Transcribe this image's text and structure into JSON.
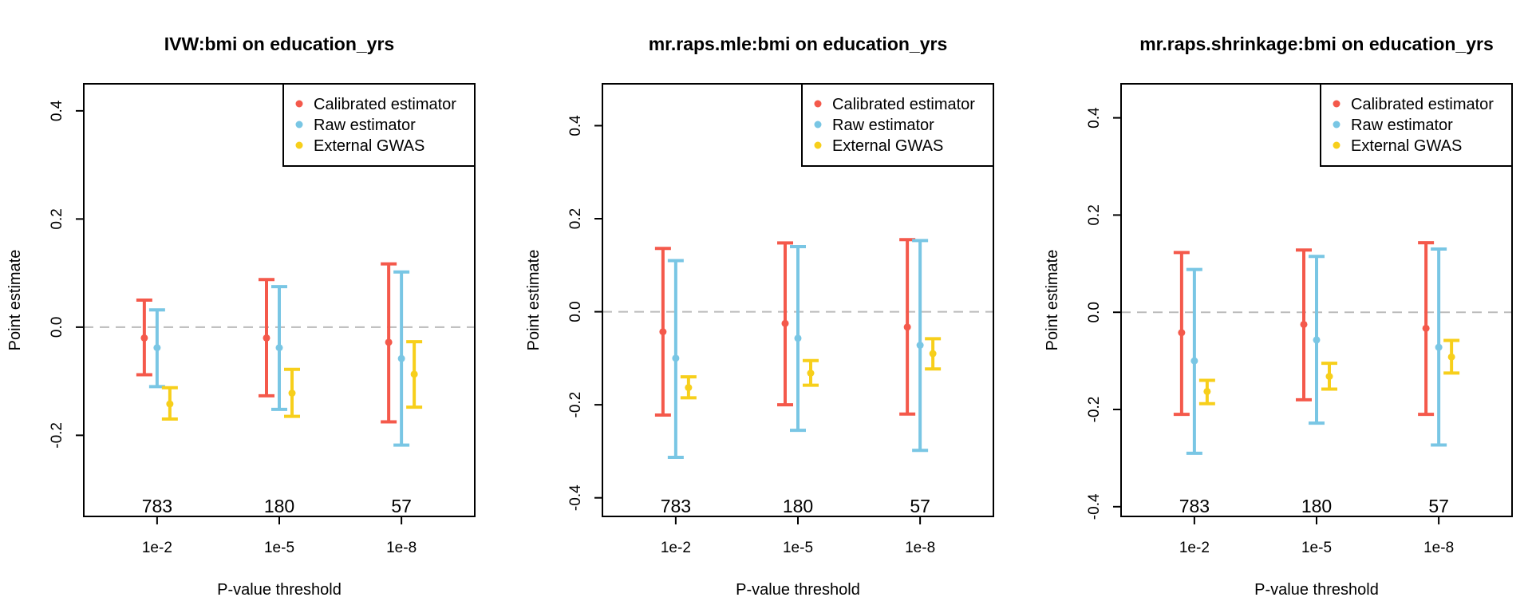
{
  "colors": {
    "calibrated": "#F4594B",
    "raw": "#79C6E4",
    "external": "#F7CF1B",
    "reference": "#BBBBBB"
  },
  "chart_data": [
    {
      "type": "errorbar",
      "title": "IVW:bmi on education_yrs",
      "xlabel": "P-value threshold",
      "ylabel": "Point estimate",
      "ylim": [
        -0.35,
        0.45
      ],
      "yticks": [
        -0.2,
        0.0,
        0.2,
        0.4
      ],
      "ytick_labels": [
        "-0.2",
        "0.0",
        "0.2",
        "0.4"
      ],
      "reference_line": 0.0,
      "legend": "top-right",
      "categories": [
        "1e-2",
        "1e-5",
        "1e-8"
      ],
      "counts": [
        "783",
        "180",
        "57"
      ],
      "series": [
        {
          "name": "Calibrated estimator",
          "color_key": "calibrated",
          "points": [
            {
              "est": -0.02,
              "lo": -0.088,
              "hi": 0.05
            },
            {
              "est": -0.02,
              "lo": -0.127,
              "hi": 0.088
            },
            {
              "est": -0.028,
              "lo": -0.175,
              "hi": 0.117
            }
          ]
        },
        {
          "name": "Raw estimator",
          "color_key": "raw",
          "points": [
            {
              "est": -0.038,
              "lo": -0.11,
              "hi": 0.032
            },
            {
              "est": -0.038,
              "lo": -0.152,
              "hi": 0.075
            },
            {
              "est": -0.058,
              "lo": -0.218,
              "hi": 0.102
            }
          ]
        },
        {
          "name": "External GWAS",
          "color_key": "external",
          "points": [
            {
              "est": -0.142,
              "lo": -0.17,
              "hi": -0.112
            },
            {
              "est": -0.122,
              "lo": -0.165,
              "hi": -0.078
            },
            {
              "est": -0.087,
              "lo": -0.148,
              "hi": -0.027
            }
          ]
        }
      ]
    },
    {
      "type": "errorbar",
      "title": "mr.raps.mle:bmi on education_yrs",
      "xlabel": "P-value threshold",
      "ylabel": "Point estimate",
      "ylim": [
        -0.44,
        0.49
      ],
      "yticks": [
        -0.4,
        -0.2,
        0.0,
        0.2,
        0.4
      ],
      "ytick_labels": [
        "-0.4",
        "-0.2",
        "0.0",
        "0.2",
        "0.4"
      ],
      "reference_line": 0.0,
      "legend": "top-right",
      "categories": [
        "1e-2",
        "1e-5",
        "1e-8"
      ],
      "counts": [
        "783",
        "180",
        "57"
      ],
      "series": [
        {
          "name": "Calibrated estimator",
          "color_key": "calibrated",
          "points": [
            {
              "est": -0.043,
              "lo": -0.222,
              "hi": 0.136
            },
            {
              "est": -0.025,
              "lo": -0.2,
              "hi": 0.148
            },
            {
              "est": -0.033,
              "lo": -0.22,
              "hi": 0.155
            }
          ]
        },
        {
          "name": "Raw estimator",
          "color_key": "raw",
          "points": [
            {
              "est": -0.1,
              "lo": -0.313,
              "hi": 0.11
            },
            {
              "est": -0.057,
              "lo": -0.255,
              "hi": 0.14
            },
            {
              "est": -0.072,
              "lo": -0.298,
              "hi": 0.153
            }
          ]
        },
        {
          "name": "External GWAS",
          "color_key": "external",
          "points": [
            {
              "est": -0.163,
              "lo": -0.185,
              "hi": -0.14
            },
            {
              "est": -0.132,
              "lo": -0.158,
              "hi": -0.105
            },
            {
              "est": -0.09,
              "lo": -0.123,
              "hi": -0.058
            }
          ]
        }
      ]
    },
    {
      "type": "errorbar",
      "title": "mr.raps.shrinkage:bmi on education_yrs",
      "xlabel": "P-value threshold",
      "ylabel": "Point estimate",
      "ylim": [
        -0.42,
        0.47
      ],
      "yticks": [
        -0.4,
        -0.2,
        0.0,
        0.2,
        0.4
      ],
      "ytick_labels": [
        "-0.4",
        "-0.2",
        "0.0",
        "0.2",
        "0.4"
      ],
      "reference_line": 0.0,
      "legend": "top-right",
      "categories": [
        "1e-2",
        "1e-5",
        "1e-8"
      ],
      "counts": [
        "783",
        "180",
        "57"
      ],
      "series": [
        {
          "name": "Calibrated estimator",
          "color_key": "calibrated",
          "points": [
            {
              "est": -0.042,
              "lo": -0.21,
              "hi": 0.123
            },
            {
              "est": -0.025,
              "lo": -0.18,
              "hi": 0.128
            },
            {
              "est": -0.033,
              "lo": -0.21,
              "hi": 0.143
            }
          ]
        },
        {
          "name": "Raw estimator",
          "color_key": "raw",
          "points": [
            {
              "est": -0.1,
              "lo": -0.29,
              "hi": 0.088
            },
            {
              "est": -0.057,
              "lo": -0.228,
              "hi": 0.115
            },
            {
              "est": -0.072,
              "lo": -0.273,
              "hi": 0.13
            }
          ]
        },
        {
          "name": "External GWAS",
          "color_key": "external",
          "points": [
            {
              "est": -0.163,
              "lo": -0.188,
              "hi": -0.14
            },
            {
              "est": -0.132,
              "lo": -0.158,
              "hi": -0.105
            },
            {
              "est": -0.092,
              "lo": -0.125,
              "hi": -0.058
            }
          ]
        }
      ]
    }
  ]
}
